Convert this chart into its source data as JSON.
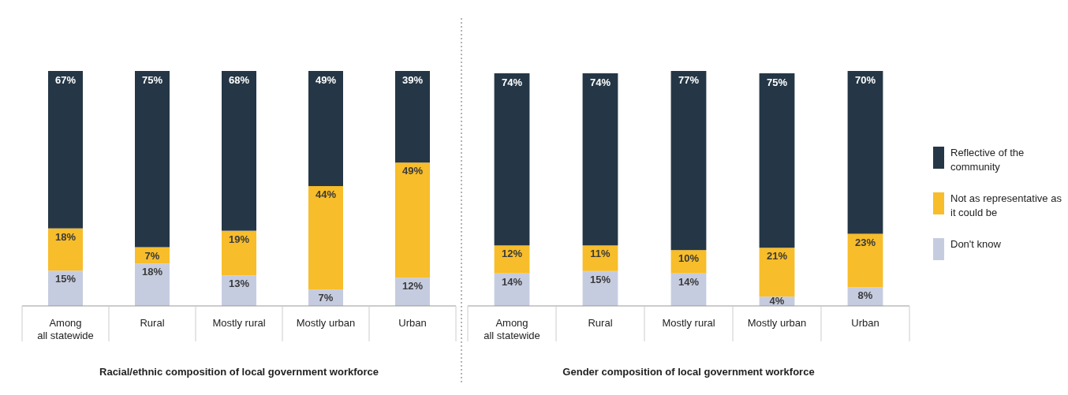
{
  "chart_data": [
    {
      "type": "bar",
      "stacked": true,
      "legend": false,
      "xlabel": "Racial/ethnic composition of local government workforce",
      "categories": [
        "Among all statewide",
        "Rural",
        "Mostly rural",
        "Mostly urban",
        "Urban"
      ],
      "series": [
        {
          "color": "#c6cce0",
          "values": [
            15,
            18,
            13,
            7,
            12
          ],
          "value_labels": [
            "15%",
            "18%",
            "13%",
            "7%",
            "12%"
          ]
        },
        {
          "color": "#f7bd2a",
          "values": [
            18,
            7,
            19,
            44,
            49
          ],
          "value_labels": [
            "18%",
            "7%",
            "19%",
            "44%",
            "49%"
          ]
        },
        {
          "color": "#253746",
          "values": [
            67,
            75,
            68,
            49,
            39
          ],
          "value_labels": [
            "67%",
            "75%",
            "68%",
            "49%",
            "39%"
          ]
        }
      ]
    },
    {
      "type": "bar",
      "stacked": true,
      "legend": "right",
      "xlabel": "Gender composition of local government workforce",
      "categories": [
        "Among all statewide",
        "Rural",
        "Mostly rural",
        "Mostly urban",
        "Urban"
      ],
      "series": [
        {
          "name": "Don't know",
          "color": "#c6cce0",
          "values": [
            14,
            15,
            14,
            4,
            8
          ],
          "value_labels": [
            "14%",
            "15%",
            "14%",
            "4%",
            "8%"
          ]
        },
        {
          "name": "Not as representative as it could be",
          "color": "#f7bd2a",
          "values": [
            12,
            11,
            10,
            21,
            23
          ],
          "value_labels": [
            "12%",
            "11%",
            "10%",
            "21%",
            "23%"
          ]
        },
        {
          "name": "Reflective of the community",
          "color": "#253746",
          "values": [
            74,
            74,
            77,
            75,
            70
          ],
          "value_labels": [
            "74%",
            "74%",
            "77%",
            "75%",
            "70%"
          ]
        }
      ]
    }
  ]
}
